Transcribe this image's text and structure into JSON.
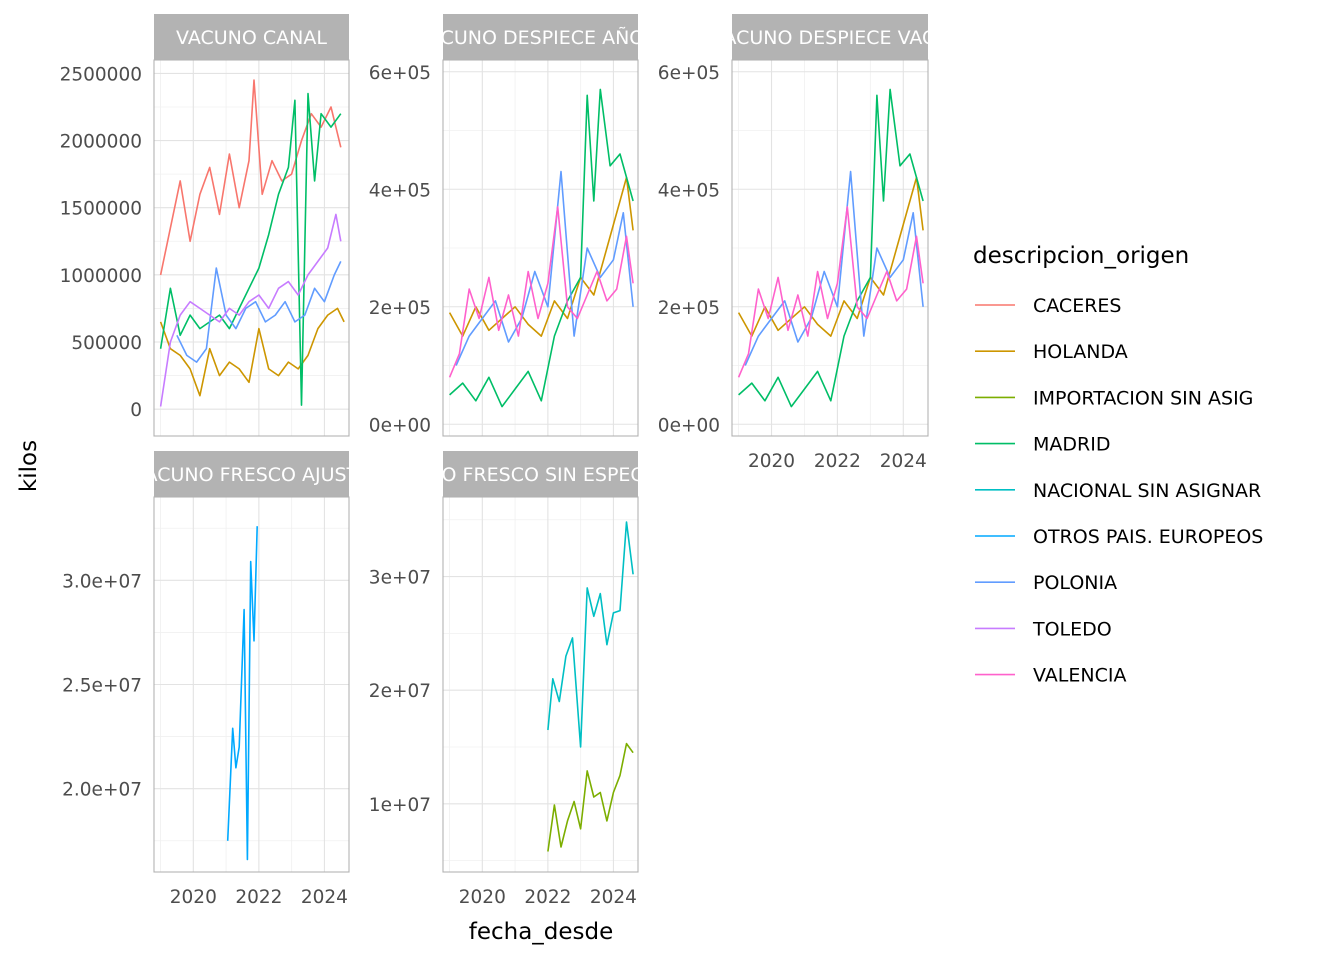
{
  "chart_data": {
    "type": "line",
    "x_label": "fecha_desde",
    "y_label": "kilos",
    "legend": {
      "title": "descripcion_origen",
      "placement": "right",
      "items": [
        {
          "name": "CACERES",
          "color": "#F8766D"
        },
        {
          "name": "HOLANDA",
          "color": "#CD9600"
        },
        {
          "name": "IMPORTACION SIN ASIG",
          "color": "#7CAE00"
        },
        {
          "name": "MADRID",
          "color": "#00BE67"
        },
        {
          "name": "NACIONAL SIN ASIGNAR",
          "color": "#00BFC4"
        },
        {
          "name": "OTROS PAIS. EUROPEOS",
          "color": "#00A9FF"
        },
        {
          "name": "POLONIA",
          "color": "#619CFF"
        },
        {
          "name": "TOLEDO",
          "color": "#C77CFF"
        },
        {
          "name": "VALENCIA",
          "color": "#FF61CC"
        }
      ]
    },
    "grid": true,
    "x_ticks": [
      "2020",
      "2022",
      "2024"
    ],
    "panels": [
      {
        "title": "VACUNO CANAL",
        "ylim": [
          -200000,
          2600000
        ],
        "y_ticks": [
          {
            "v": 0,
            "label": "0"
          },
          {
            "v": 500000,
            "label": "500000"
          },
          {
            "v": 1000000,
            "label": "1000000"
          },
          {
            "v": 1500000,
            "label": "1500000"
          },
          {
            "v": 2000000,
            "label": "2000000"
          },
          {
            "v": 2500000,
            "label": "2500000"
          }
        ],
        "series": [
          {
            "name": "CACERES",
            "x": [
              2019.0,
              2019.3,
              2019.6,
              2019.9,
              2020.2,
              2020.5,
              2020.8,
              2021.1,
              2021.4,
              2021.7,
              2021.85,
              2022.1,
              2022.4,
              2022.7,
              2023.0,
              2023.3,
              2023.6,
              2023.9,
              2024.2,
              2024.5
            ],
            "values": [
              1000000,
              1350000,
              1700000,
              1250000,
              1600000,
              1800000,
              1450000,
              1900000,
              1500000,
              1850000,
              2450000,
              1600000,
              1850000,
              1700000,
              1750000,
              2000000,
              2200000,
              2100000,
              2250000,
              1950000
            ]
          },
          {
            "name": "HOLANDA",
            "x": [
              2019.0,
              2019.3,
              2019.6,
              2019.9,
              2020.2,
              2020.5,
              2020.8,
              2021.1,
              2021.4,
              2021.7,
              2022.0,
              2022.3,
              2022.6,
              2022.9,
              2023.2,
              2023.5,
              2023.8,
              2024.1,
              2024.4,
              2024.6
            ],
            "values": [
              650000,
              450000,
              400000,
              300000,
              100000,
              450000,
              250000,
              350000,
              300000,
              200000,
              600000,
              300000,
              250000,
              350000,
              300000,
              400000,
              600000,
              700000,
              750000,
              650000
            ]
          },
          {
            "name": "MADRID",
            "x": [
              2019.0,
              2019.3,
              2019.6,
              2019.9,
              2020.2,
              2020.5,
              2020.8,
              2021.1,
              2021.4,
              2021.7,
              2022.0,
              2022.3,
              2022.6,
              2022.9,
              2023.1,
              2023.3,
              2023.5,
              2023.7,
              2023.9,
              2024.2,
              2024.5
            ],
            "values": [
              450000,
              900000,
              550000,
              700000,
              600000,
              650000,
              700000,
              600000,
              750000,
              900000,
              1050000,
              1300000,
              1600000,
              1800000,
              2300000,
              30000,
              2350000,
              1700000,
              2200000,
              2100000,
              2200000
            ]
          },
          {
            "name": "POLONIA",
            "x": [
              2019.5,
              2019.8,
              2020.1,
              2020.4,
              2020.7,
              2021.0,
              2021.3,
              2021.6,
              2021.9,
              2022.2,
              2022.5,
              2022.8,
              2023.1,
              2023.4,
              2023.7,
              2024.0,
              2024.3,
              2024.5
            ],
            "values": [
              550000,
              400000,
              350000,
              450000,
              1050000,
              700000,
              600000,
              750000,
              800000,
              650000,
              700000,
              800000,
              650000,
              700000,
              900000,
              800000,
              1000000,
              1100000
            ]
          },
          {
            "name": "TOLEDO",
            "x": [
              2019.0,
              2019.3,
              2019.6,
              2019.9,
              2020.2,
              2020.5,
              2020.8,
              2021.1,
              2021.4,
              2021.7,
              2022.0,
              2022.3,
              2022.6,
              2022.9,
              2023.2,
              2023.5,
              2023.8,
              2024.1,
              2024.35,
              2024.5
            ],
            "values": [
              20000,
              500000,
              700000,
              800000,
              750000,
              700000,
              650000,
              750000,
              700000,
              800000,
              850000,
              750000,
              900000,
              950000,
              850000,
              1000000,
              1100000,
              1200000,
              1450000,
              1250000
            ]
          }
        ]
      },
      {
        "title": "VACUNO DESPIECE AÑOJO",
        "ylim": [
          -20000,
          620000
        ],
        "y_ticks": [
          {
            "v": 0,
            "label": "0e+00"
          },
          {
            "v": 200000,
            "label": "2e+05"
          },
          {
            "v": 400000,
            "label": "4e+05"
          },
          {
            "v": 600000,
            "label": "6e+05"
          }
        ],
        "series": [
          {
            "name": "HOLANDA",
            "x": [
              2019.0,
              2019.4,
              2019.8,
              2020.2,
              2020.6,
              2021.0,
              2021.4,
              2021.8,
              2022.2,
              2022.6,
              2023.0,
              2023.4,
              2023.8,
              2024.2,
              2024.4,
              2024.6
            ],
            "values": [
              190000,
              150000,
              200000,
              160000,
              180000,
              200000,
              170000,
              150000,
              210000,
              180000,
              250000,
              220000,
              300000,
              380000,
              420000,
              330000
            ]
          },
          {
            "name": "MADRID",
            "x": [
              2019.0,
              2019.4,
              2019.8,
              2020.2,
              2020.6,
              2021.0,
              2021.4,
              2021.8,
              2022.2,
              2022.6,
              2023.0,
              2023.2,
              2023.4,
              2023.6,
              2023.9,
              2024.2,
              2024.6
            ],
            "values": [
              50000,
              70000,
              40000,
              80000,
              30000,
              60000,
              90000,
              40000,
              150000,
              210000,
              250000,
              560000,
              380000,
              570000,
              440000,
              460000,
              380000
            ]
          },
          {
            "name": "POLONIA",
            "x": [
              2019.2,
              2019.6,
              2020.0,
              2020.4,
              2020.8,
              2021.2,
              2021.6,
              2022.0,
              2022.4,
              2022.8,
              2023.2,
              2023.6,
              2024.0,
              2024.3,
              2024.6
            ],
            "values": [
              100000,
              150000,
              180000,
              210000,
              140000,
              180000,
              260000,
              200000,
              430000,
              150000,
              300000,
              250000,
              280000,
              360000,
              200000
            ]
          },
          {
            "name": "VALENCIA",
            "x": [
              2019.0,
              2019.3,
              2019.6,
              2019.9,
              2020.2,
              2020.5,
              2020.8,
              2021.1,
              2021.4,
              2021.7,
              2022.0,
              2022.3,
              2022.6,
              2022.9,
              2023.2,
              2023.5,
              2023.8,
              2024.1,
              2024.4,
              2024.6
            ],
            "values": [
              80000,
              120000,
              230000,
              180000,
              250000,
              160000,
              220000,
              150000,
              260000,
              180000,
              240000,
              370000,
              200000,
              180000,
              220000,
              260000,
              210000,
              230000,
              320000,
              240000
            ]
          }
        ]
      },
      {
        "title": "VACUNO DESPIECE VACA",
        "ylim": [
          -20000,
          620000
        ],
        "y_ticks": [
          {
            "v": 0,
            "label": "0e+00"
          },
          {
            "v": 200000,
            "label": "2e+05"
          },
          {
            "v": 400000,
            "label": "4e+05"
          },
          {
            "v": 600000,
            "label": "6e+05"
          }
        ],
        "series": [
          {
            "name": "HOLANDA",
            "x": [
              2019.0,
              2019.4,
              2019.8,
              2020.2,
              2020.6,
              2021.0,
              2021.4,
              2021.8,
              2022.2,
              2022.6,
              2023.0,
              2023.4,
              2023.8,
              2024.2,
              2024.4,
              2024.6
            ],
            "values": [
              190000,
              150000,
              200000,
              160000,
              180000,
              200000,
              170000,
              150000,
              210000,
              180000,
              250000,
              220000,
              300000,
              380000,
              420000,
              330000
            ]
          },
          {
            "name": "MADRID",
            "x": [
              2019.0,
              2019.4,
              2019.8,
              2020.2,
              2020.6,
              2021.0,
              2021.4,
              2021.8,
              2022.2,
              2022.6,
              2023.0,
              2023.2,
              2023.4,
              2023.6,
              2023.9,
              2024.2,
              2024.6
            ],
            "values": [
              50000,
              70000,
              40000,
              80000,
              30000,
              60000,
              90000,
              40000,
              150000,
              210000,
              250000,
              560000,
              380000,
              570000,
              440000,
              460000,
              380000
            ]
          },
          {
            "name": "POLONIA",
            "x": [
              2019.2,
              2019.6,
              2020.0,
              2020.4,
              2020.8,
              2021.2,
              2021.6,
              2022.0,
              2022.4,
              2022.8,
              2023.2,
              2023.6,
              2024.0,
              2024.3,
              2024.6
            ],
            "values": [
              100000,
              150000,
              180000,
              210000,
              140000,
              180000,
              260000,
              200000,
              430000,
              150000,
              300000,
              250000,
              280000,
              360000,
              200000
            ]
          },
          {
            "name": "VALENCIA",
            "x": [
              2019.0,
              2019.3,
              2019.6,
              2019.9,
              2020.2,
              2020.5,
              2020.8,
              2021.1,
              2021.4,
              2021.7,
              2022.0,
              2022.3,
              2022.6,
              2022.9,
              2023.2,
              2023.5,
              2023.8,
              2024.1,
              2024.4,
              2024.6
            ],
            "values": [
              80000,
              120000,
              230000,
              180000,
              250000,
              160000,
              220000,
              150000,
              260000,
              180000,
              240000,
              370000,
              200000,
              180000,
              220000,
              260000,
              210000,
              230000,
              320000,
              240000
            ]
          }
        ]
      },
      {
        "title": "VACUNO FRESCO AJUSTE",
        "ylim": [
          16000000,
          34000000
        ],
        "y_ticks": [
          {
            "v": 20000000,
            "label": "2.0e+07"
          },
          {
            "v": 25000000,
            "label": "2.5e+07"
          },
          {
            "v": 30000000,
            "label": "3.0e+07"
          }
        ],
        "series": [
          {
            "name": "OTROS PAIS. EUROPEOS",
            "x": [
              2021.05,
              2021.2,
              2021.3,
              2021.4,
              2021.55,
              2021.65,
              2021.75,
              2021.85,
              2021.95
            ],
            "values": [
              17500000,
              22900000,
              21000000,
              22000000,
              28600000,
              16600000,
              30900000,
              27100000,
              32600000
            ]
          }
        ]
      },
      {
        "title": "VACUNO FRESCO SIN ESPECIFICAR",
        "ylim": [
          4000000,
          37000000
        ],
        "y_ticks": [
          {
            "v": 10000000,
            "label": "1e+07"
          },
          {
            "v": 20000000,
            "label": "2e+07"
          },
          {
            "v": 30000000,
            "label": "3e+07"
          }
        ],
        "series": [
          {
            "name": "IMPORTACION SIN ASIG",
            "x": [
              2022.0,
              2022.2,
              2022.4,
              2022.6,
              2022.8,
              2023.0,
              2023.2,
              2023.4,
              2023.6,
              2023.8,
              2024.0,
              2024.2,
              2024.4,
              2024.6
            ],
            "values": [
              5800000,
              9900000,
              6200000,
              8500000,
              10200000,
              7800000,
              12900000,
              10600000,
              11000000,
              8500000,
              11000000,
              12500000,
              15300000,
              14500000
            ]
          },
          {
            "name": "NACIONAL SIN ASIGNAR",
            "x": [
              2022.0,
              2022.15,
              2022.35,
              2022.55,
              2022.75,
              2023.0,
              2023.2,
              2023.4,
              2023.6,
              2023.8,
              2024.0,
              2024.2,
              2024.4,
              2024.6
            ],
            "values": [
              16500000,
              21000000,
              19000000,
              23000000,
              24600000,
              15000000,
              29000000,
              26500000,
              28500000,
              24000000,
              26800000,
              27000000,
              34800000,
              30200000
            ]
          }
        ]
      }
    ]
  }
}
